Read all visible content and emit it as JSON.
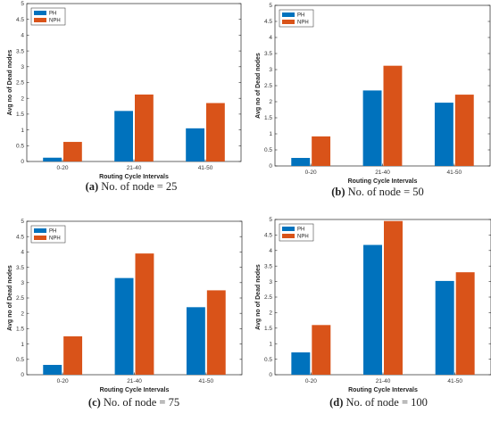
{
  "chart_data": [
    {
      "type": "bar",
      "categories": [
        "0-20",
        "21-40",
        "41-50"
      ],
      "series": [
        {
          "name": "PH",
          "values": [
            0.12,
            1.6,
            1.05
          ]
        },
        {
          "name": "NPH",
          "values": [
            0.62,
            2.12,
            1.85
          ]
        }
      ],
      "xlabel": "Routing Cycle Intervals",
      "ylabel": "Avg no of Dead nodes",
      "ylim": [
        0,
        5
      ],
      "yticks": [
        "0",
        "0.5",
        "1",
        "1.5",
        "2",
        "2.5",
        "3",
        "3.5",
        "4",
        "4.5",
        "5"
      ],
      "legend": "top-left",
      "grid": false,
      "caption_label": "(a)",
      "caption_text": " No. of node = 25"
    },
    {
      "type": "bar",
      "categories": [
        "0-20",
        "21-40",
        "41-50"
      ],
      "series": [
        {
          "name": "PH",
          "values": [
            0.25,
            2.35,
            1.97
          ]
        },
        {
          "name": "NPH",
          "values": [
            0.92,
            3.12,
            2.22
          ]
        }
      ],
      "xlabel": "Routing Cycle Intervals",
      "ylabel": "Avg no of Dead nodes",
      "ylim": [
        0,
        5
      ],
      "yticks": [
        "0",
        "0.5",
        "1",
        "1.5",
        "2",
        "2.5",
        "3",
        "3.5",
        "4",
        "4.5",
        "5"
      ],
      "legend": "top-left",
      "grid": false,
      "caption_label": "(b)",
      "caption_text": " No. of node = 50"
    },
    {
      "type": "bar",
      "categories": [
        "0-20",
        "21-40",
        "41-50"
      ],
      "series": [
        {
          "name": "PH",
          "values": [
            0.32,
            3.15,
            2.2
          ]
        },
        {
          "name": "NPH",
          "values": [
            1.25,
            3.95,
            2.75
          ]
        }
      ],
      "xlabel": "Routing Cycle Intervals",
      "ylabel": "Avg no of Dead nodes",
      "ylim": [
        0,
        5
      ],
      "yticks": [
        "0",
        "0.5",
        "1",
        "1.5",
        "2",
        "2.5",
        "3",
        "3.5",
        "4",
        "4.5",
        "5"
      ],
      "legend": "top-left",
      "grid": false,
      "caption_label": "(c)",
      "caption_text": " No. of node = 75"
    },
    {
      "type": "bar",
      "categories": [
        "0-20",
        "21-40",
        "41-50"
      ],
      "series": [
        {
          "name": "PH",
          "values": [
            0.72,
            4.18,
            3.02
          ]
        },
        {
          "name": "NPH",
          "values": [
            1.6,
            4.95,
            3.3
          ]
        }
      ],
      "xlabel": "Routing Cycle Intervals",
      "ylabel": "Avg no of Dead nodes",
      "ylim": [
        0,
        5
      ],
      "yticks": [
        "0",
        "0.5",
        "1",
        "1.5",
        "2",
        "2.5",
        "3",
        "3.5",
        "4",
        "4.5",
        "5"
      ],
      "legend": "top-left",
      "grid": false,
      "caption_label": "(d)",
      "caption_text": " No. of node = 100"
    }
  ],
  "colors": {
    "PH": "#0072BD",
    "NPH": "#D95319"
  }
}
